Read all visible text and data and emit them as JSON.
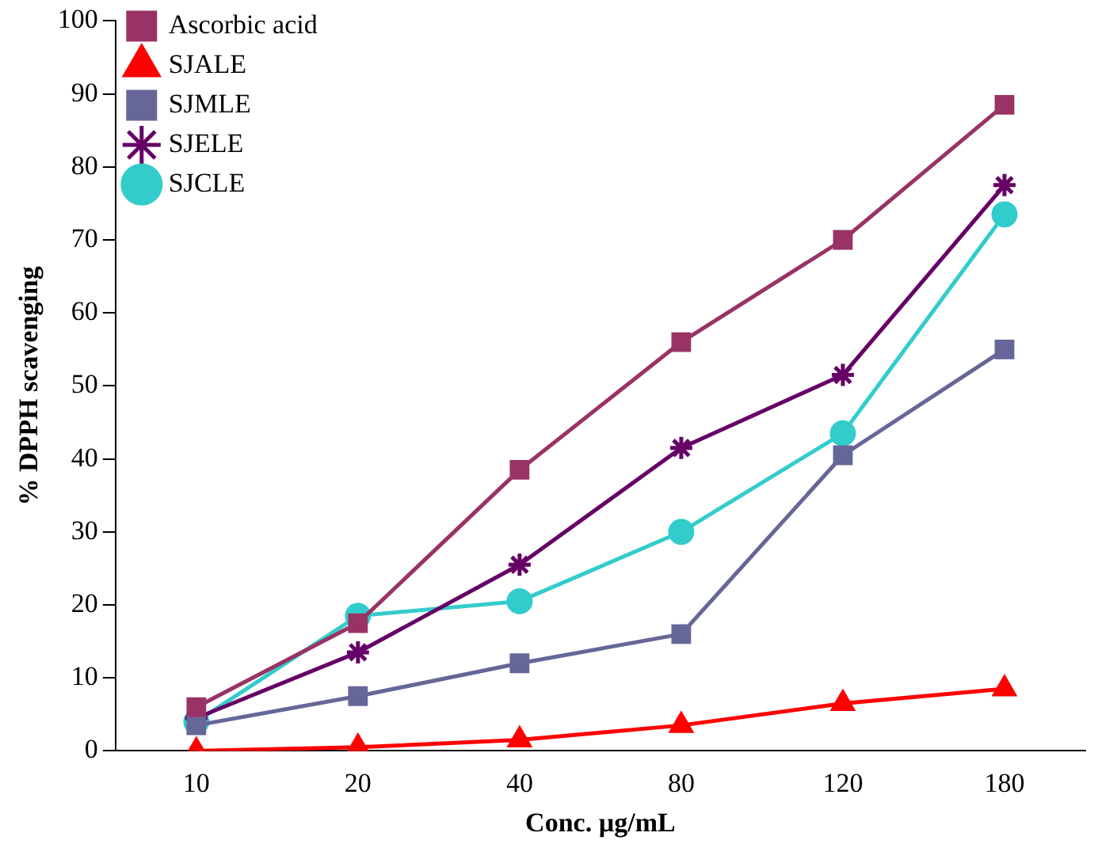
{
  "chart_data": {
    "type": "line",
    "xlabel": "Conc. µg/mL",
    "ylabel": "% DPPH scavenging",
    "categories": [
      "10",
      "20",
      "40",
      "80",
      "120",
      "180"
    ],
    "ylim": [
      0,
      100
    ],
    "yticks": [
      0,
      10,
      20,
      30,
      40,
      50,
      60,
      70,
      80,
      90,
      100
    ],
    "grid": false,
    "legend": "top left",
    "line_style": "solid",
    "series": [
      {
        "name": "Ascorbic acid",
        "color": "#993366",
        "marker": "square",
        "values": [
          6,
          17.5,
          38.5,
          56,
          70,
          88.5
        ]
      },
      {
        "name": "SJALE",
        "color": "#ff0000",
        "marker": "triangle",
        "values": [
          0,
          0.5,
          1.5,
          3.5,
          6.5,
          8.5
        ]
      },
      {
        "name": "SJMLE",
        "color": "#666699",
        "marker": "square",
        "values": [
          3.5,
          7.5,
          12,
          16,
          40.5,
          55
        ]
      },
      {
        "name": "SJELE",
        "color": "#660066",
        "marker": "cross",
        "values": [
          4.5,
          13.5,
          25.5,
          41.5,
          51.5,
          77.5
        ]
      },
      {
        "name": "SJCLE",
        "color": "#33cccc",
        "marker": "circle",
        "values": [
          4,
          18.5,
          20.5,
          30,
          43.5,
          73.5
        ]
      }
    ]
  }
}
